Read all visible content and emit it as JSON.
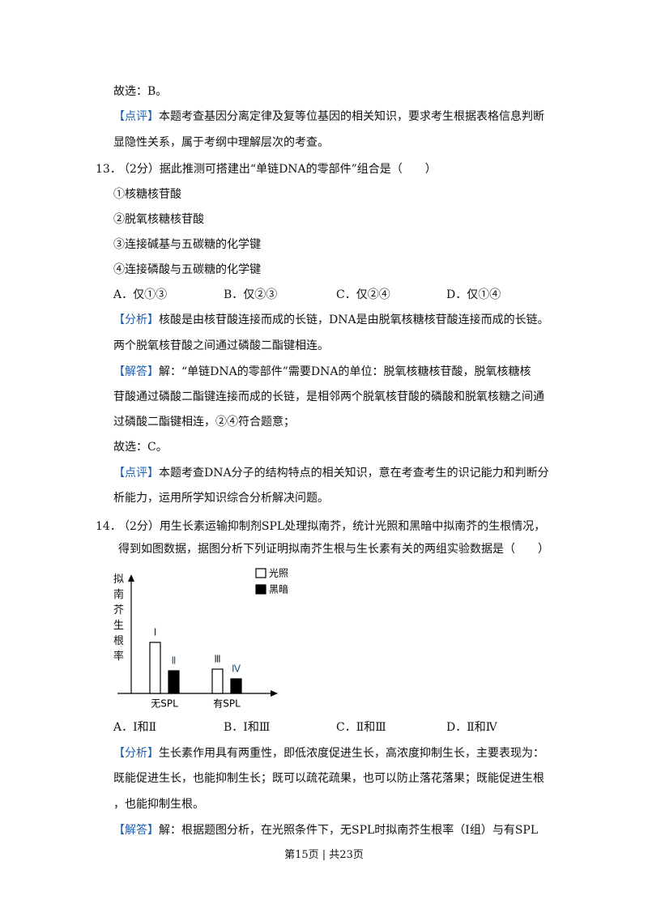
{
  "q12_tail": {
    "conclusion": "故选：B。",
    "comment": {
      "tag": "【点评】",
      "lines": [
        "本题考查基因分离定律及复等位基因的相关知识，要求考生根据表格信息判断",
        "显隐性关系，属于考纲中理解层次的考查。"
      ]
    }
  },
  "q13": {
    "number": "13．",
    "stem": "（2分）据此推测可搭建出“单链DNA的零部件”组合是（　　）",
    "items": [
      "①核糖核苷酸",
      "②脱氧核糖核苷酸",
      "③连接碱基与五碳糖的化学键",
      "④连接磷酸与五碳糖的化学键"
    ],
    "options": [
      "A．仅①③",
      "B．仅②③",
      "C．仅②④",
      "D．仅①④"
    ],
    "analysis": {
      "tag": "【分析】",
      "lines": [
        "核酸是由核苷酸连接而成的长链，DNA是由脱氧核糖核苷酸连接而成的长链。",
        "两个脱氧核苷酸之间通过磷酸二酯键相连。"
      ]
    },
    "answer": {
      "tag": "【解答】",
      "lines": [
        "解：“单链DNA的零部件”需要DNA的单位：脱氧核糖核苷酸，脱氧核糖核",
        "苷酸通过磷酸二酯键连接而成的长链，是相邻两个脱氧核苷酸的磷酸和脱氧核糖之间通",
        "过磷酸二酯键相连，②④符合题意；"
      ]
    },
    "conclusion": "故选：C。",
    "comment": {
      "tag": "【点评】",
      "lines": [
        "本题考查DNA分子的结构特点的相关知识，意在考查考生的识记能力和判断分",
        "析能力，运用所学知识综合分析解决问题。"
      ]
    }
  },
  "q14": {
    "number": "14．",
    "stem_lines": [
      "（2分）用生长素运输抑制剂SPL处理拟南芥，统计光照和黑暗中拟南芥的生根情况，",
      "得到如图数据，据图分析下列证明拟南芥生根与生长素有关的两组实验数据是（　　）"
    ],
    "figure": {
      "y_label": "拟南芥生根率",
      "categories": [
        "无SPL",
        "有SPL"
      ],
      "series": [
        {
          "name": "光照",
          "color": "#ffffff",
          "values": [
            63,
            30
          ],
          "bar_labels": [
            "Ⅰ",
            "Ⅲ"
          ]
        },
        {
          "name": "黑暗",
          "color": "#000000",
          "values": [
            28,
            18
          ],
          "bar_labels": [
            "Ⅱ",
            "Ⅳ"
          ]
        }
      ]
    },
    "options": [
      "A．Ⅰ和Ⅱ",
      "B．Ⅰ和Ⅲ",
      "C．Ⅱ和Ⅲ",
      "D．Ⅱ和Ⅳ"
    ],
    "analysis": {
      "tag": "【分析】",
      "lines": [
        "生长素作用具有两重性，即低浓度促进生长，高浓度抑制生长，主要表现为：",
        "既能促进生长，也能抑制生长；既可以疏花疏果，也可以防止落花落果；既能促进生根",
        "，也能抑制生根。"
      ]
    },
    "answer": {
      "tag": "【解答】",
      "lines": [
        "解：根据题图分析，在光照条件下，无SPL时拟南芥生根率（Ⅰ组）与有SPL"
      ]
    }
  },
  "footer": "第15页 | 共23页"
}
